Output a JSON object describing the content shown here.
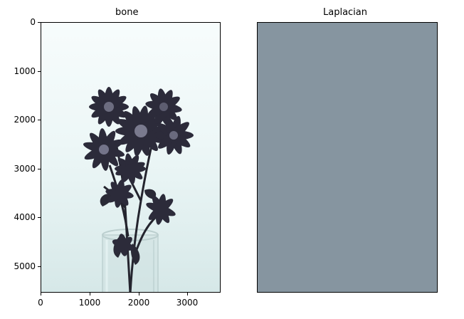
{
  "left_panel": {
    "title": "bone",
    "y_ticks": [
      "0",
      "1000",
      "2000",
      "3000",
      "4000",
      "5000"
    ],
    "x_ticks": [
      "0",
      "1000",
      "2000",
      "3000"
    ]
  },
  "right_panel": {
    "title": "Laplacian",
    "fill_color": "#8695a0"
  },
  "image_subject": "flower-bouquet-in-glass-vase"
}
